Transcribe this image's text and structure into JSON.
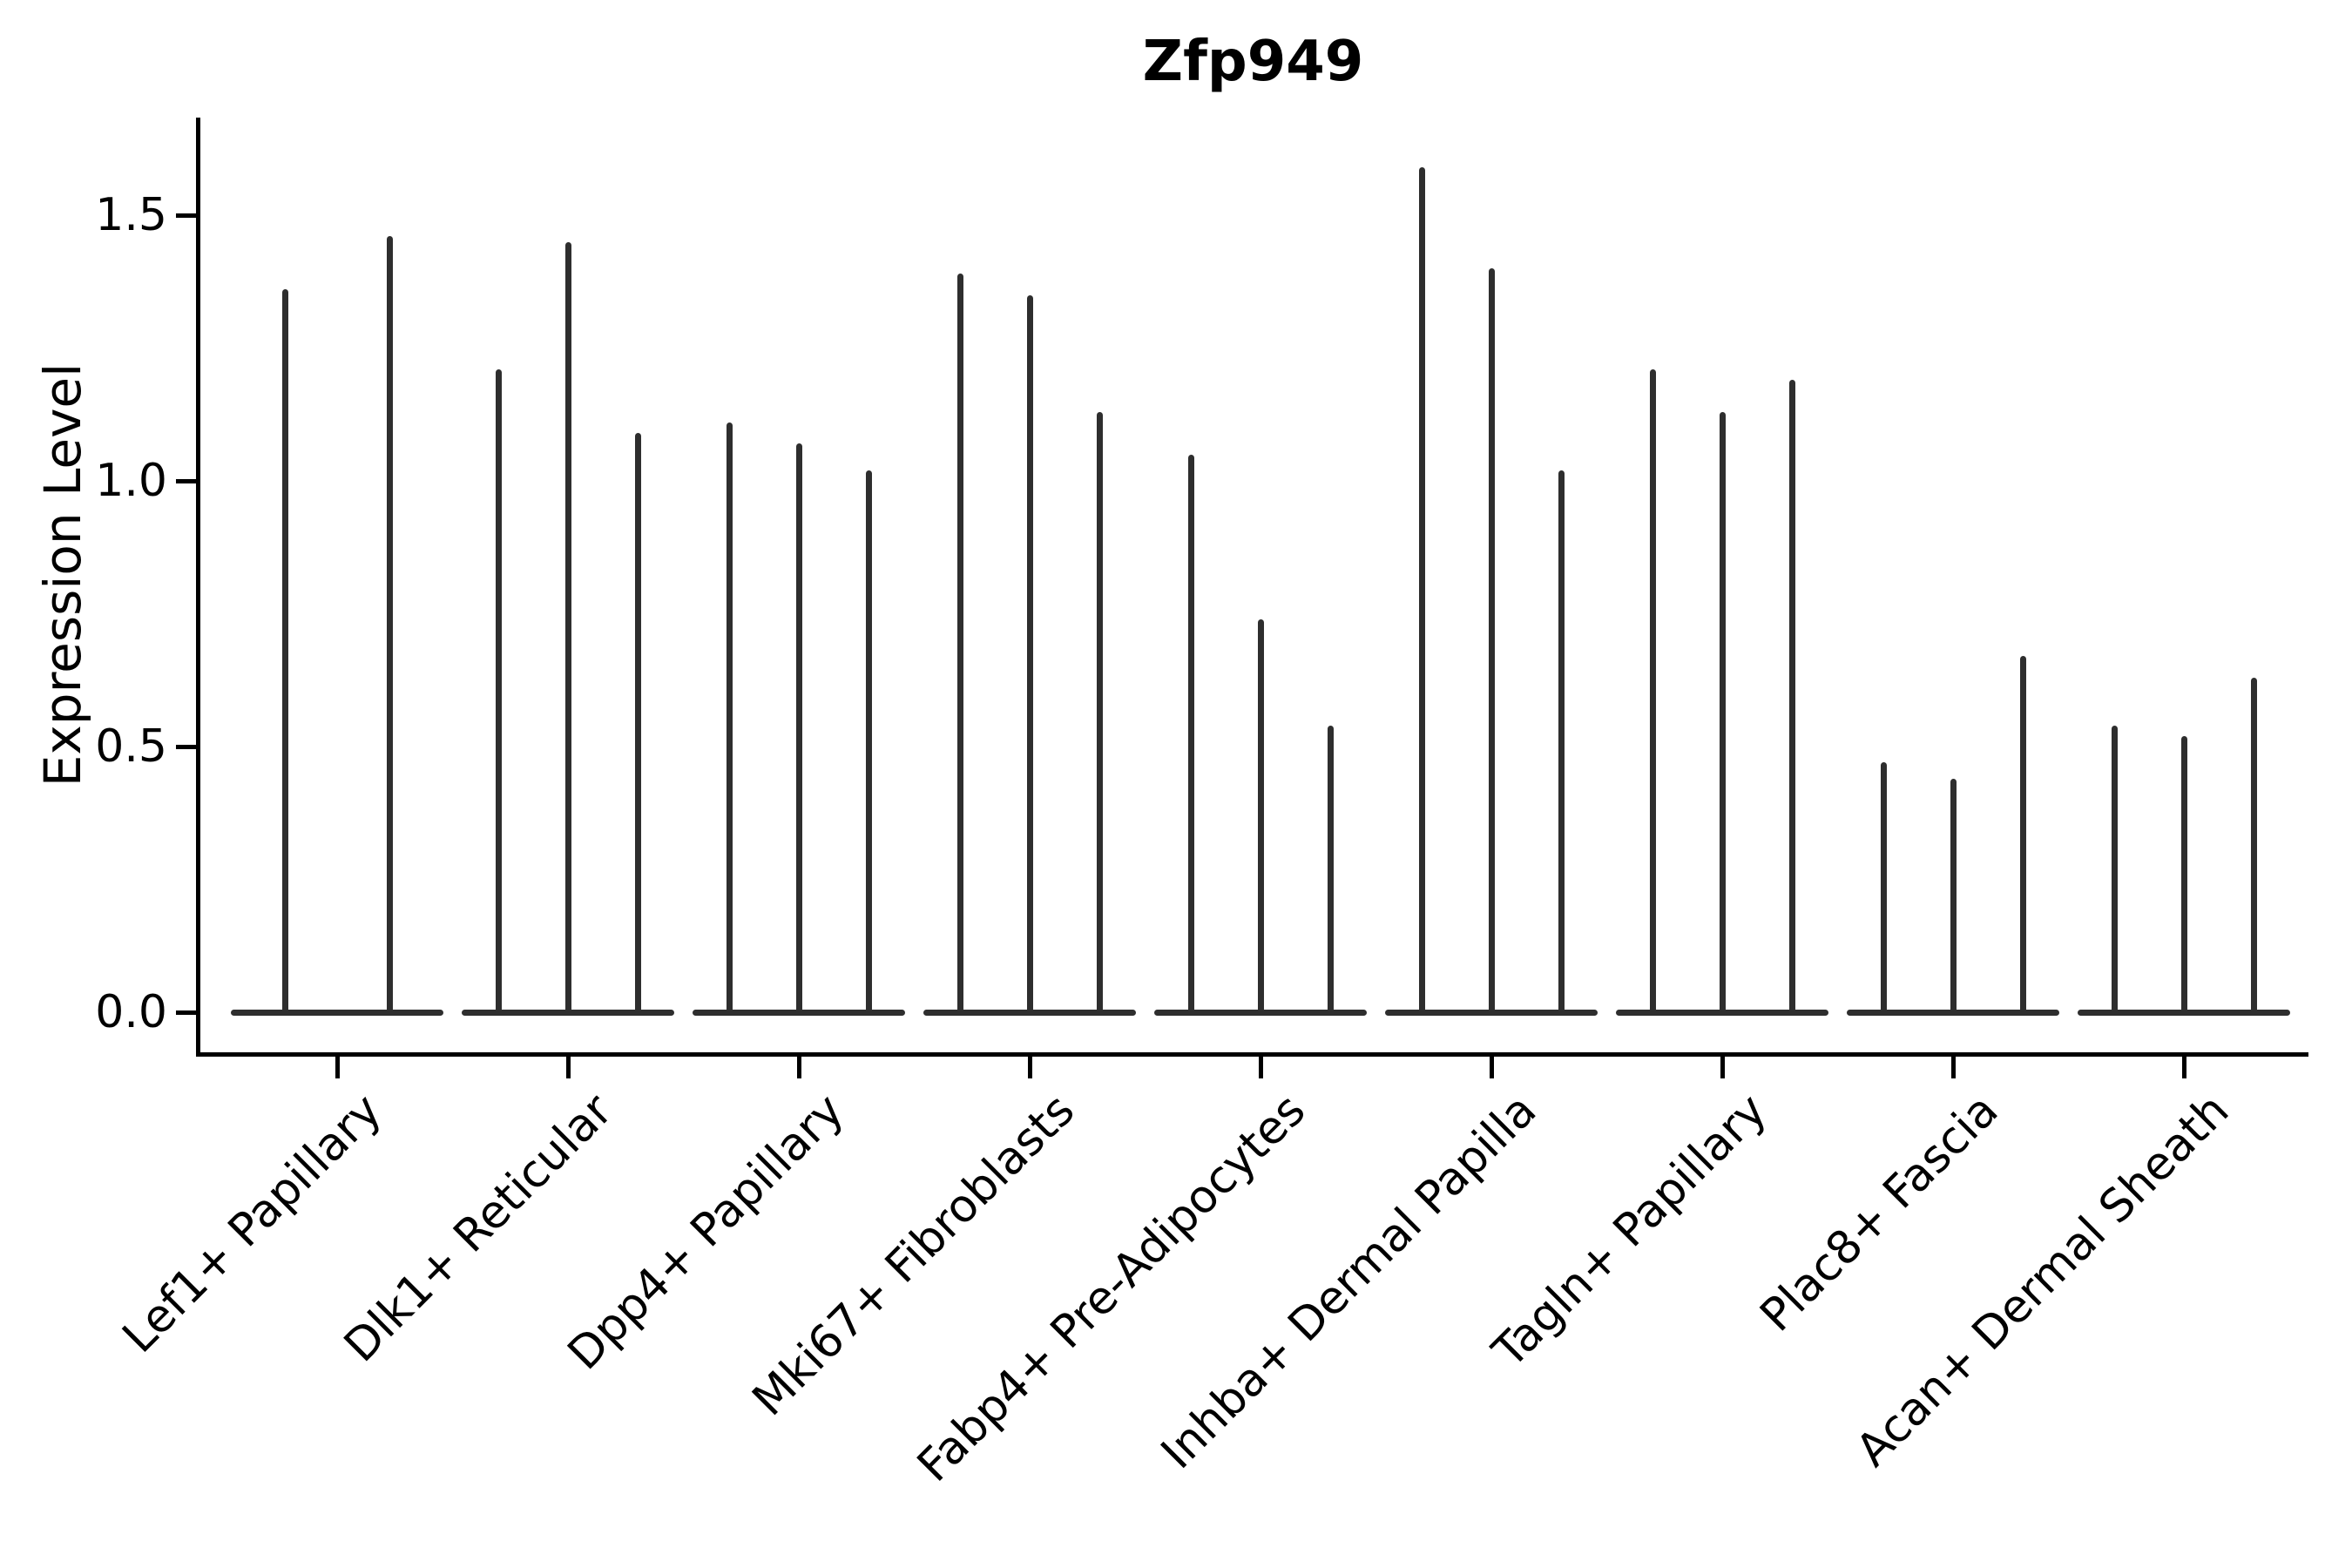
{
  "chart_data": {
    "type": "violin",
    "title": "Zfp949",
    "ylabel": "Expression Level",
    "xlabel": "",
    "grid": false,
    "legend": "none",
    "ylim": [
      -0.08,
      1.68
    ],
    "yticks": [
      {
        "label": "0.0",
        "value": 0.0
      },
      {
        "label": "0.5",
        "value": 0.5
      },
      {
        "label": "1.0",
        "value": 1.0
      },
      {
        "label": "1.5",
        "value": 1.5
      }
    ],
    "description": "Thin needle-shaped violins; each group shows 2-3 violins whose wide flat bases sit at expression 0 and whose spikes reach the listed maximum expression value.",
    "groups": [
      {
        "label": "Lef1+ Papillary",
        "values": [
          1.36,
          1.46
        ]
      },
      {
        "label": "Dlk1+ Reticular",
        "values": [
          1.21,
          1.45,
          1.09
        ]
      },
      {
        "label": "Dpp4+ Papillary",
        "values": [
          1.11,
          1.07,
          1.02
        ]
      },
      {
        "label": "Mki67+ Fibroblasts",
        "values": [
          1.39,
          1.35,
          1.13
        ]
      },
      {
        "label": "Fabp4+ Pre-Adipocytes",
        "values": [
          1.05,
          0.74,
          0.54
        ]
      },
      {
        "label": "Inhba+ Dermal Papilla",
        "values": [
          1.59,
          1.4,
          1.02
        ]
      },
      {
        "label": "Tagln+ Papillary",
        "values": [
          1.21,
          1.13,
          1.19
        ]
      },
      {
        "label": "Plac8+ Fascia",
        "values": [
          0.47,
          0.44,
          0.67
        ]
      },
      {
        "label": "Acan+ Dermal Sheath",
        "values": [
          0.54,
          0.52,
          0.63
        ]
      }
    ],
    "colors": {
      "violin": "#2e2e2e",
      "axis": "#000000",
      "background": "#ffffff"
    }
  }
}
